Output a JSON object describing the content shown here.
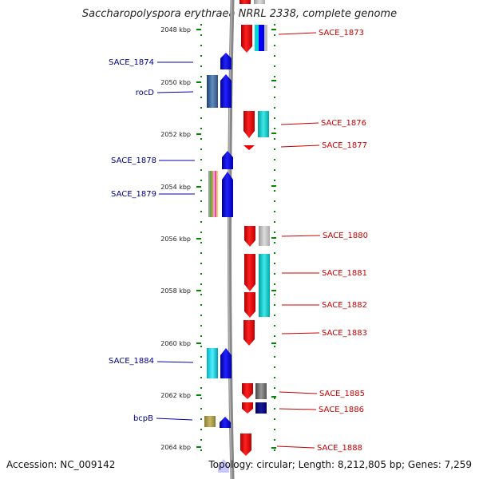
{
  "title": "Saccharopolyspora erythraea NRRL 2338, complete genome",
  "accession": "Accession: NC_009142",
  "summary": "Topology: circular; Length: 8,212,805 bp; Genes: 7,259",
  "scale_labels": [
    "2048 kbp",
    "2050 kbp",
    "2052 kbp",
    "2054 kbp",
    "2056 kbp",
    "2058 kbp",
    "2060 kbp",
    "2062 kbp",
    "2064 kbp"
  ],
  "left_labels": [
    "SACE_1874",
    "rocD",
    "SACE_1878",
    "SACE_1879",
    "SACE_1884",
    "bcpB"
  ],
  "right_labels": [
    "SACE_1873",
    "SACE_1876",
    "SACE_1877",
    "SACE_1880",
    "SACE_1881",
    "SACE_1882",
    "SACE_1883",
    "SACE_1885",
    "SACE_1886",
    "SACE_1888"
  ],
  "colors": {
    "forward_gene": "#0000ee",
    "reverse_gene": "#ee0000",
    "left_label": "#00008b",
    "right_label": "#cc0000",
    "backbone": "#888888",
    "ticks": "#008800"
  }
}
